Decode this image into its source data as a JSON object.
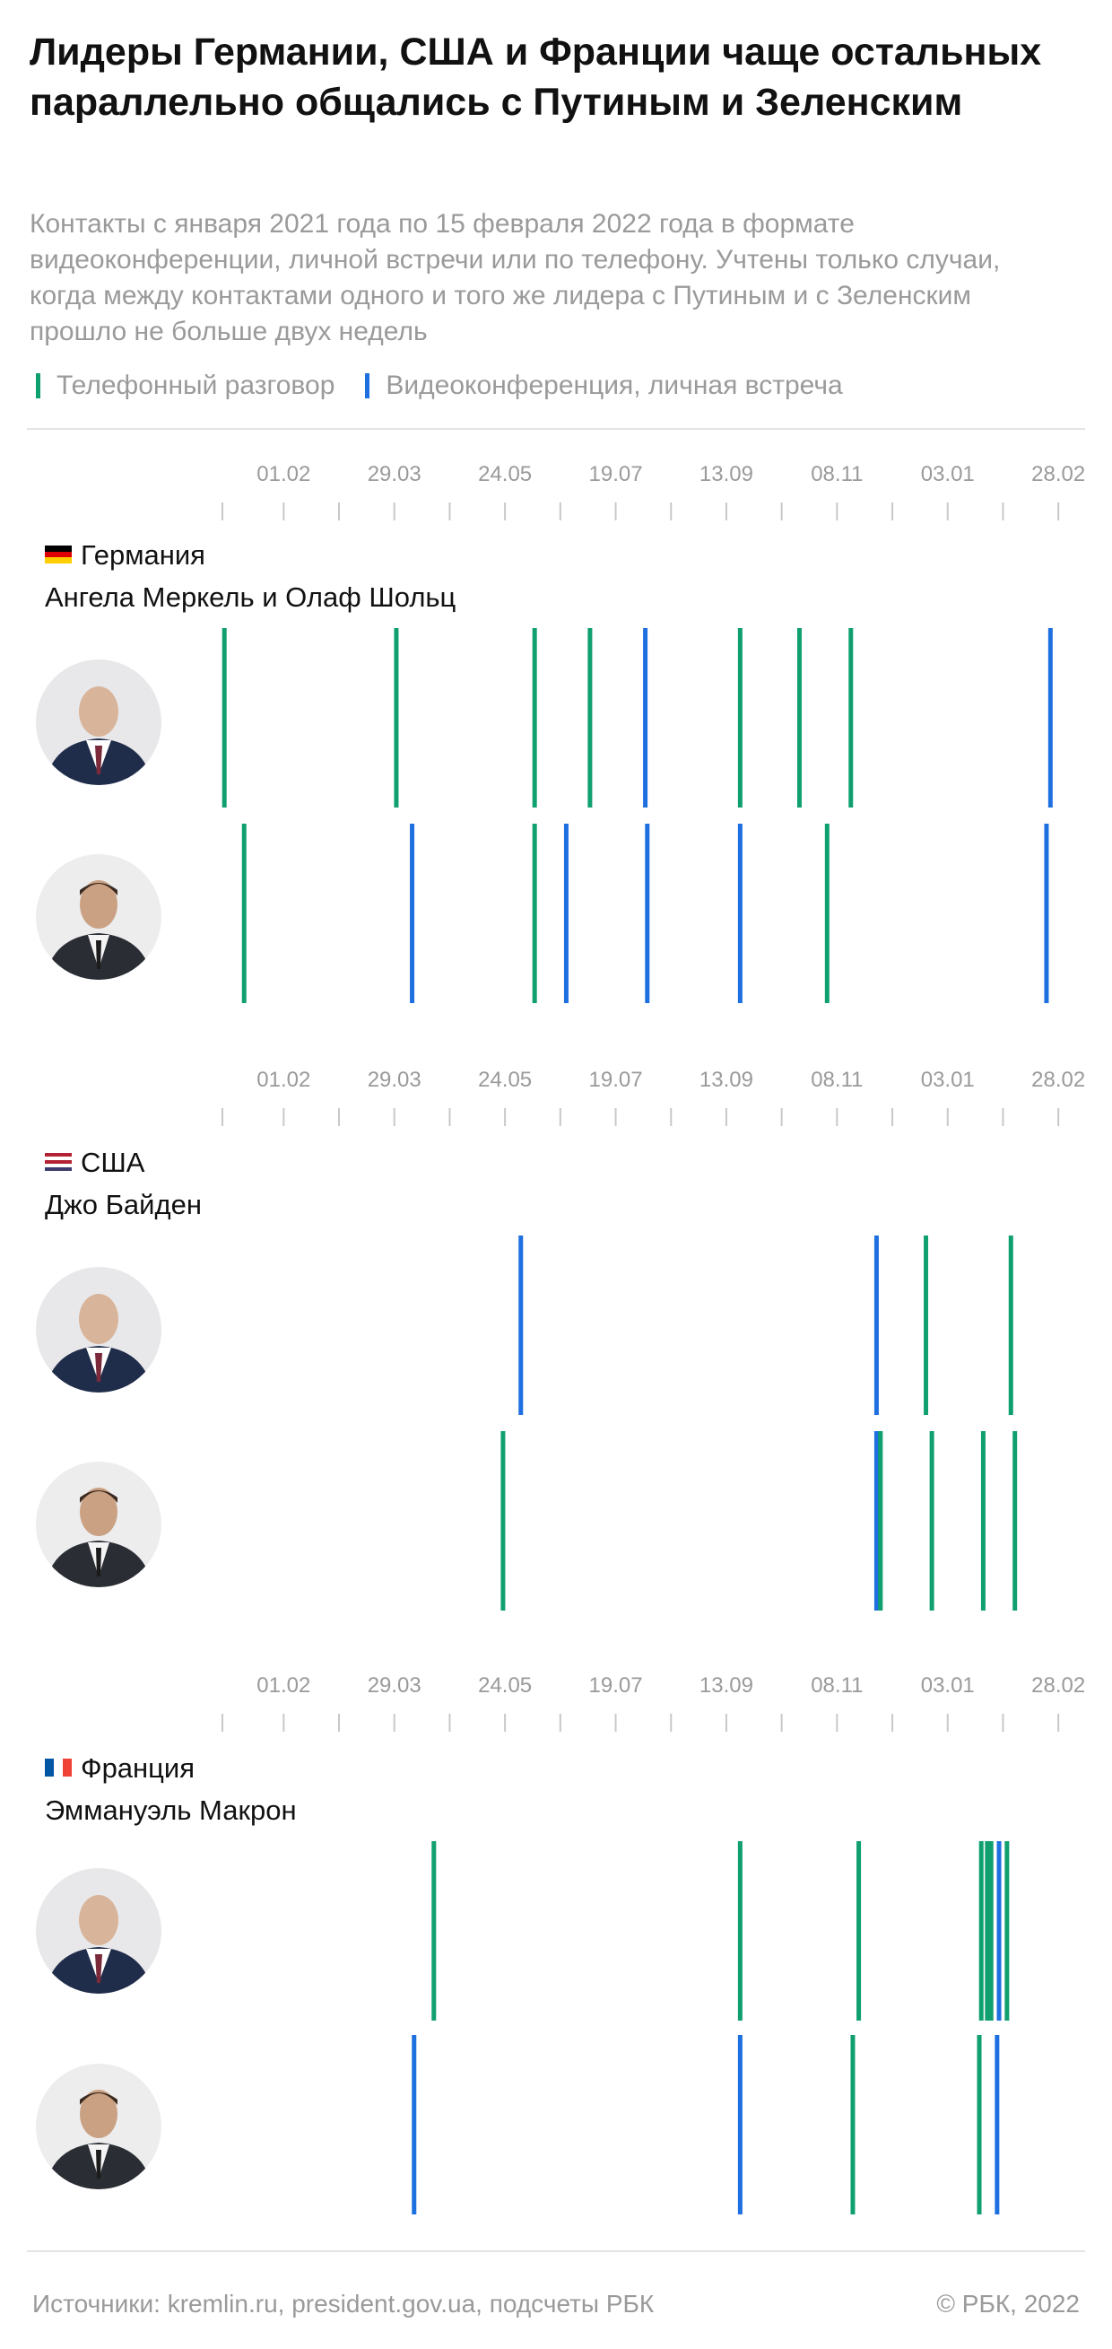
{
  "header": {
    "title": "Лидеры Германии, США и Франции чаще остальных параллельно общались с Путиным и Зеленским",
    "subtitle": "Контакты с января 2021 года по 15 февраля 2022 года в формате видеоконференции, личной встречи или по телефону. Учтены только случаи, когда между контактами одного и того же лидера с Путиным и с Зеленским прошло не больше двух недель"
  },
  "legend": {
    "phone": {
      "label": "Телефонный разговор",
      "color": "#10a070"
    },
    "video": {
      "label": "Видеоконференция, личная встреча",
      "color": "#1e6fe0"
    }
  },
  "colors": {
    "phone": "#10a070",
    "video": "#1e6fe0",
    "axis": "#c8c8c8",
    "muted": "#9a9a9a"
  },
  "footer": {
    "sources": "Источники: kremlin.ru, president.gov.ua, подсчеты РБК",
    "copyright": "©  РБК, 2022"
  },
  "chart_data": {
    "type": "timeline",
    "x_domain": [
      "2021-01-01",
      "2022-03-09"
    ],
    "ticks": [
      {
        "date": "2021-01-01",
        "label": ""
      },
      {
        "date": "2021-02-01",
        "label": "01.02"
      },
      {
        "date": "2021-03-01",
        "label": ""
      },
      {
        "date": "2021-03-29",
        "label": "29.03"
      },
      {
        "date": "2021-04-26",
        "label": ""
      },
      {
        "date": "2021-05-24",
        "label": "24.05"
      },
      {
        "date": "2021-06-21",
        "label": ""
      },
      {
        "date": "2021-07-19",
        "label": "19.07"
      },
      {
        "date": "2021-08-16",
        "label": ""
      },
      {
        "date": "2021-09-13",
        "label": "13.09"
      },
      {
        "date": "2021-10-11",
        "label": ""
      },
      {
        "date": "2021-11-08",
        "label": "08.11"
      },
      {
        "date": "2021-12-06",
        "label": ""
      },
      {
        "date": "2022-01-03",
        "label": "03.01"
      },
      {
        "date": "2022-01-31",
        "label": ""
      },
      {
        "date": "2022-02-28",
        "label": "28.02"
      }
    ],
    "sections": [
      {
        "country": "Германия",
        "leaders": "Ангела Меркель и Олаф Шольц",
        "flag": [
          "#000000",
          "#dd0000",
          "#ffce00"
        ],
        "rows": [
          {
            "person": "Путин",
            "events": [
              {
                "date": "2021-01-02",
                "type": "phone"
              },
              {
                "date": "2021-03-30",
                "type": "phone"
              },
              {
                "date": "2021-06-08",
                "type": "phone"
              },
              {
                "date": "2021-07-06",
                "type": "phone"
              },
              {
                "date": "2021-08-03",
                "type": "video"
              },
              {
                "date": "2021-09-20",
                "type": "phone"
              },
              {
                "date": "2021-10-20",
                "type": "phone"
              },
              {
                "date": "2021-11-15",
                "type": "phone"
              },
              {
                "date": "2022-02-24",
                "type": "video"
              }
            ]
          },
          {
            "person": "Зеленский",
            "events": [
              {
                "date": "2021-01-12",
                "type": "phone"
              },
              {
                "date": "2021-04-07",
                "type": "video"
              },
              {
                "date": "2021-06-08",
                "type": "phone"
              },
              {
                "date": "2021-06-24",
                "type": "video"
              },
              {
                "date": "2021-08-04",
                "type": "video"
              },
              {
                "date": "2021-09-20",
                "type": "video"
              },
              {
                "date": "2021-11-03",
                "type": "phone"
              },
              {
                "date": "2022-02-22",
                "type": "video"
              }
            ]
          }
        ]
      },
      {
        "country": "США",
        "leaders": "Джо Байден",
        "flag": [
          "#b22234",
          "#ffffff",
          "#b22234",
          "#ffffff",
          "#3c3b6e"
        ],
        "rows": [
          {
            "person": "Путин",
            "events": [
              {
                "date": "2021-06-01",
                "type": "video"
              },
              {
                "date": "2021-11-28",
                "type": "video"
              },
              {
                "date": "2021-12-23",
                "type": "phone"
              },
              {
                "date": "2022-02-04",
                "type": "phone"
              }
            ]
          },
          {
            "person": "Зеленский",
            "events": [
              {
                "date": "2021-05-23",
                "type": "phone"
              },
              {
                "date": "2021-11-28",
                "type": "video"
              },
              {
                "date": "2021-11-30",
                "type": "phone"
              },
              {
                "date": "2021-12-26",
                "type": "phone"
              },
              {
                "date": "2022-01-21",
                "type": "phone"
              },
              {
                "date": "2022-02-06",
                "type": "phone"
              }
            ]
          }
        ]
      },
      {
        "country": "Франция",
        "leaders": "Эммануэль Макрон",
        "flag": [
          "#0055a4",
          "#ffffff",
          "#ef4135"
        ],
        "rows": [
          {
            "person": "Путин",
            "events": [
              {
                "date": "2021-04-18",
                "type": "phone"
              },
              {
                "date": "2021-09-20",
                "type": "phone"
              },
              {
                "date": "2021-11-19",
                "type": "phone"
              },
              {
                "date": "2022-01-20",
                "type": "phone"
              },
              {
                "date": "2022-01-23",
                "type": "phone"
              },
              {
                "date": "2022-01-25",
                "type": "phone"
              },
              {
                "date": "2022-01-29",
                "type": "video"
              },
              {
                "date": "2022-02-02",
                "type": "phone"
              }
            ]
          },
          {
            "person": "Зеленский",
            "events": [
              {
                "date": "2021-04-08",
                "type": "video"
              },
              {
                "date": "2021-09-20",
                "type": "video"
              },
              {
                "date": "2021-11-16",
                "type": "phone"
              },
              {
                "date": "2022-01-19",
                "type": "phone"
              },
              {
                "date": "2022-01-28",
                "type": "video"
              }
            ]
          }
        ]
      }
    ]
  }
}
